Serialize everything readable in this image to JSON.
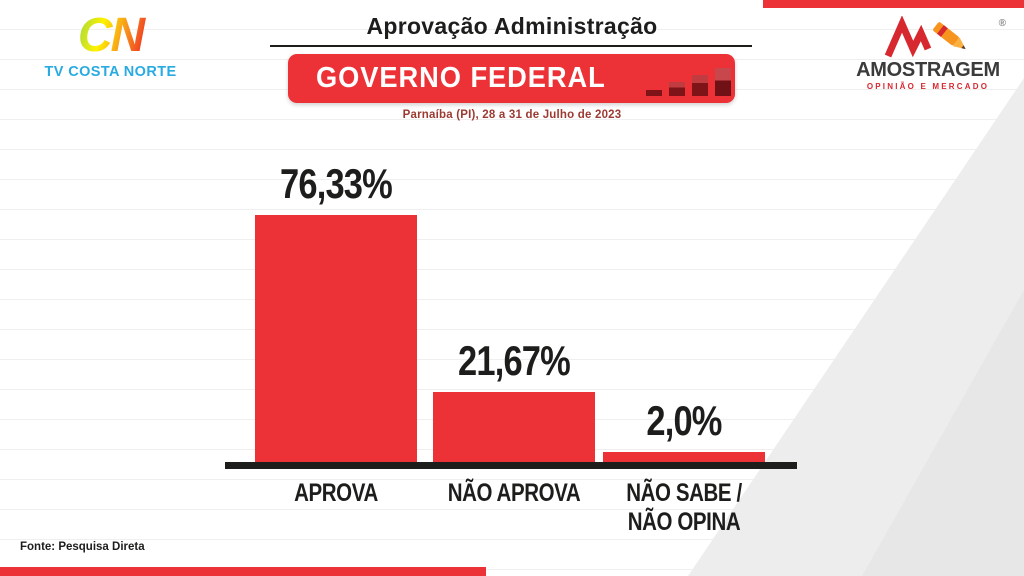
{
  "header": {
    "title": "Aprovação Administração",
    "banner_label": "GOVERNO FEDERAL",
    "subtitle": "Parnaíba (PI), 28 a 31 de Julho de 2023"
  },
  "logos": {
    "tv_costa_norte": {
      "mark": "CN",
      "name": "TV COSTA NORTE"
    },
    "amostragem": {
      "name": "AMOSTRAGEM",
      "tagline": "OPINIÃO E MERCADO",
      "registered": "®"
    }
  },
  "chart_data": {
    "type": "bar",
    "title": "GOVERNO FEDERAL",
    "context_title": "Aprovação Administração",
    "subtitle": "Parnaíba (PI), 28 a 31 de Julho de 2023",
    "categories": [
      "APROVA",
      "NÃO APROVA",
      "NÃO SABE / NÃO OPINA"
    ],
    "category_lines": [
      [
        "APROVA"
      ],
      [
        "NÃO APROVA"
      ],
      [
        "NÃO SABE /",
        "NÃO OPINA"
      ]
    ],
    "values": [
      76.33,
      21.67,
      2.0
    ],
    "display_values": [
      "76,33%",
      "21,67%",
      "2,0%"
    ],
    "ylim": [
      0,
      100
    ],
    "grid": false,
    "legend": "none",
    "bar_color": "#ED3237"
  },
  "footer": {
    "source": "Fonte: Pesquisa Direta"
  },
  "colors": {
    "accent_red": "#ED3237",
    "near_black": "#1D1D1B",
    "icon_dark_red": "#7E1418",
    "icon_light_red": "#C03C41",
    "tv_blue": "#29ABE2",
    "amostragem_gray": "#3B3B3B",
    "tagline_red": "#D7282F",
    "subtitle_red": "#9C3A31",
    "diagonal_gray": "#ECECEC"
  }
}
